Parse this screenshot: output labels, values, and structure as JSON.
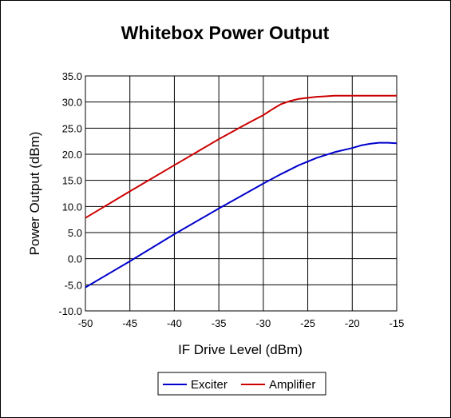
{
  "chart_data": {
    "type": "line",
    "title": "Whitebox Power Output",
    "xlabel": "IF Drive Level (dBm)",
    "ylabel": "Power Output (dBm)",
    "xlim": [
      -50,
      -15
    ],
    "ylim": [
      -10,
      35
    ],
    "xticks": [
      -50,
      -45,
      -40,
      -35,
      -30,
      -25,
      -20,
      -15
    ],
    "xtick_labels": [
      "-50",
      "-45",
      "-40",
      "-35",
      "-30",
      "-25",
      "-20",
      "-15"
    ],
    "yticks": [
      -10,
      -5,
      0,
      5,
      10,
      15,
      20,
      25,
      30,
      35
    ],
    "ytick_labels": [
      "-10.0",
      "-5.0",
      "0.0",
      "5.0",
      "10.0",
      "15.0",
      "20.0",
      "25.0",
      "30.0",
      "35.0"
    ],
    "grid": true,
    "legend_position": "bottom-center",
    "series": [
      {
        "name": "Exciter",
        "color": "#0000cc",
        "x": [
          -50,
          -45,
          -40,
          -35,
          -30,
          -28,
          -26,
          -24,
          -22,
          -20,
          -19,
          -18,
          -17,
          -16,
          -15
        ],
        "y": [
          -5.5,
          -0.5,
          4.7,
          9.6,
          14.4,
          16.2,
          17.9,
          19.3,
          20.4,
          21.2,
          21.7,
          22.0,
          22.2,
          22.2,
          22.1
        ]
      },
      {
        "name": "Amplifier",
        "color": "#cc0000",
        "x": [
          -50,
          -45,
          -40,
          -35,
          -32,
          -30,
          -29,
          -28,
          -27,
          -26,
          -25,
          -24,
          -23,
          -22,
          -20,
          -15
        ],
        "y": [
          7.8,
          12.9,
          17.9,
          22.9,
          25.7,
          27.5,
          28.6,
          29.6,
          30.2,
          30.6,
          30.8,
          31.0,
          31.1,
          31.2,
          31.2,
          31.2
        ]
      }
    ]
  }
}
